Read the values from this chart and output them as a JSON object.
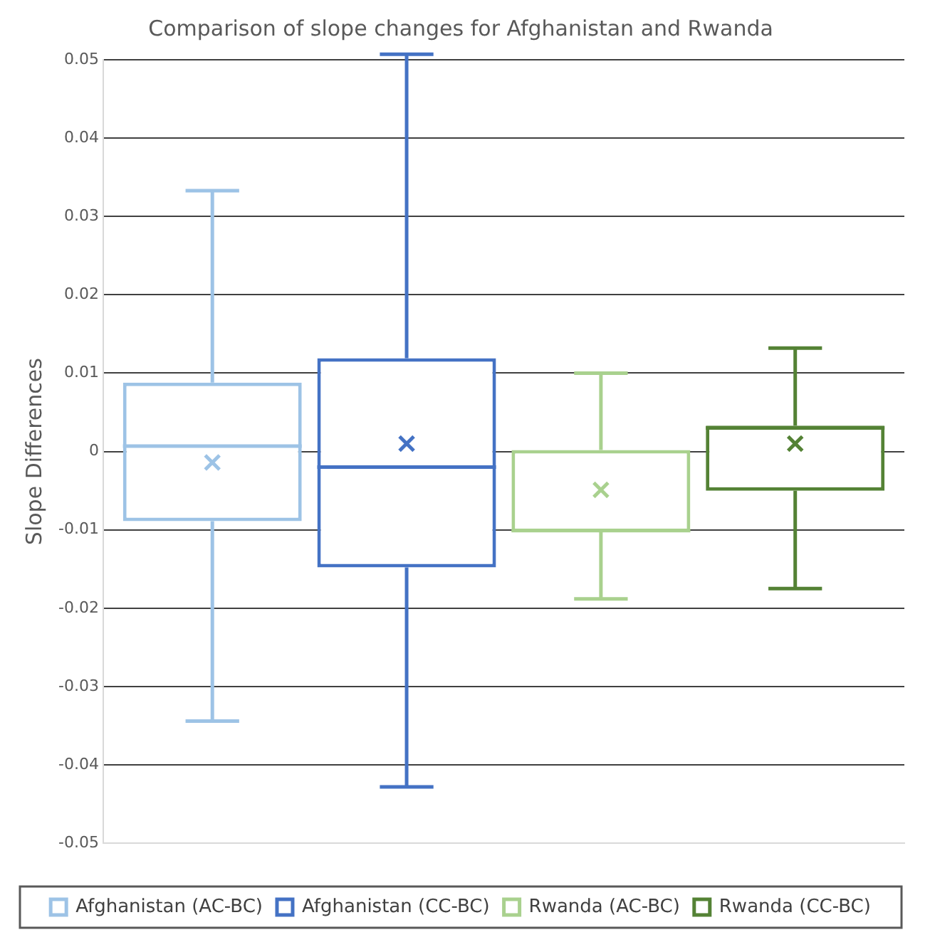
{
  "chart_data": {
    "type": "box",
    "title": "Comparison of slope changes for Afghanistan and Rwanda",
    "ylabel": "Slope Differences",
    "categories": [
      null
    ],
    "series": [
      {
        "name": "Afghanistan (AC-BC)",
        "color": "#9dc3e6",
        "boxes": [
          {
            "low": -0.0344,
            "q1": -0.0089,
            "median": 0.0007,
            "q3": 0.0088,
            "high": 0.0333,
            "mean": -0.0014
          }
        ]
      },
      {
        "name": "Afghanistan (CC-BC)",
        "color": "#4472c4",
        "boxes": [
          {
            "low": -0.0428,
            "q1": -0.0148,
            "median": -0.002,
            "q3": 0.0119,
            "high": 0.0507,
            "mean": 0.001
          }
        ]
      },
      {
        "name": "Rwanda (AC-BC)",
        "color": "#a9d18e",
        "boxes": [
          {
            "low": -0.0188,
            "q1": -0.0103,
            "median": -0.0101,
            "q3": 0.0002,
            "high": 0.01,
            "mean": -0.0049
          }
        ]
      },
      {
        "name": "Rwanda (CC-BC)",
        "color": "#548235",
        "boxes": [
          {
            "low": -0.0175,
            "q1": -0.005,
            "median": 0.003,
            "q3": 0.0033,
            "high": 0.0132,
            "mean": 0.001
          }
        ]
      }
    ],
    "ylim": [
      -0.05,
      0.05
    ],
    "yticks": [
      {
        "value": -0.05,
        "label": "-0.05"
      },
      {
        "value": -0.04,
        "label": "-0.04"
      },
      {
        "value": -0.03,
        "label": "-0.03"
      },
      {
        "value": -0.02,
        "label": "-0.02"
      },
      {
        "value": -0.01,
        "label": "-0.01"
      },
      0,
      0.01,
      0.02,
      0.03,
      0.04,
      0.05
    ],
    "grid": "y",
    "legend": "bottom",
    "marker": "cross"
  }
}
